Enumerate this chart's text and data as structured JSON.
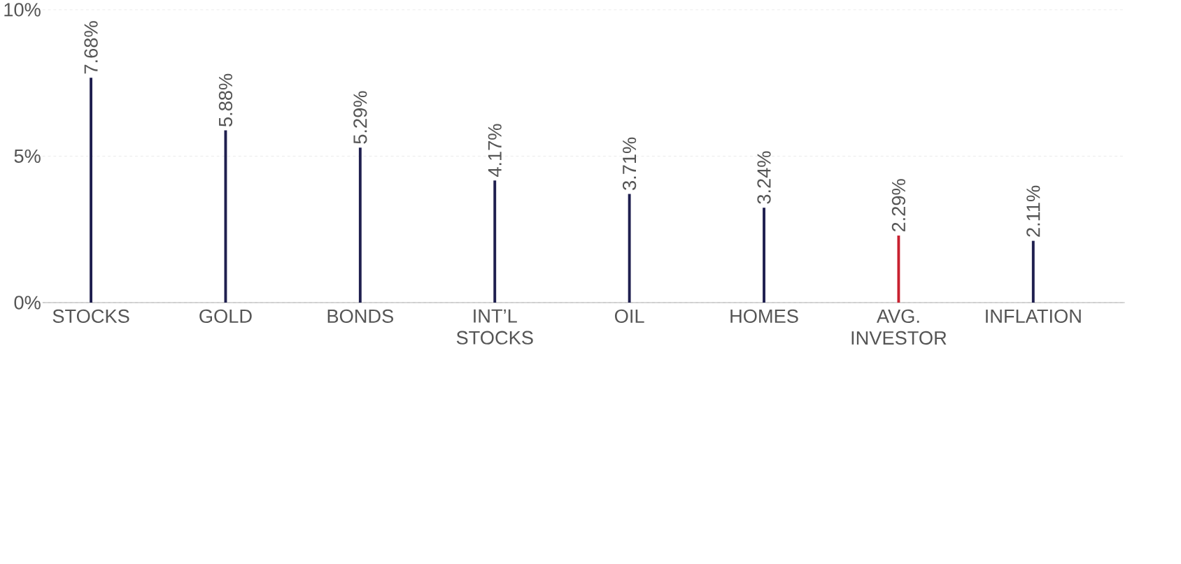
{
  "chart_data": {
    "type": "bar",
    "categories": [
      "STOCKS",
      "GOLD",
      "BONDS",
      "INT’L STOCKS",
      "OIL",
      "HOMES",
      "AVG. INVESTOR",
      "INFLATION"
    ],
    "values": [
      7.68,
      5.88,
      5.29,
      4.17,
      3.71,
      3.24,
      2.29,
      2.11
    ],
    "value_labels": [
      "7.68%",
      "5.88%",
      "5.29%",
      "4.17%",
      "3.71%",
      "3.24%",
      "2.29%",
      "2.11%"
    ],
    "colors": [
      "#1f1f4f",
      "#1f1f4f",
      "#1f1f4f",
      "#1f1f4f",
      "#1f1f4f",
      "#1f1f4f",
      "#c8202f",
      "#1f1f4f"
    ],
    "ylim": [
      0,
      10
    ],
    "yticks": [
      {
        "value": 0,
        "label": "0%"
      },
      {
        "value": 5,
        "label": "5%"
      },
      {
        "value": 10,
        "label": "10%"
      }
    ],
    "grid": "y"
  }
}
